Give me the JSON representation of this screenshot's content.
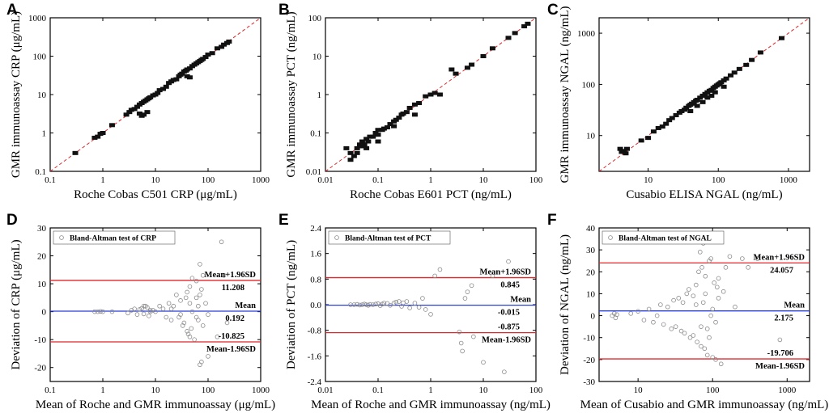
{
  "chart_data": [
    {
      "panel": "A",
      "type": "scatter",
      "scale": "log",
      "xlabel": "Roche Cobas C501 CRP (μg/mL)",
      "ylabel": "GMR immunoassay CRP (μg/mL)",
      "xlim": [
        0.1,
        1000
      ],
      "ylim": [
        0.1,
        1000
      ],
      "xticks": [
        "0.1",
        "1",
        "10",
        "100",
        "1000"
      ],
      "yticks": [
        "0.1",
        "1",
        "10",
        "100",
        "1000"
      ],
      "identity_line": true,
      "x": [
        0.3,
        0.7,
        0.8,
        0.9,
        1.0,
        1.5,
        2.8,
        3.2,
        3.5,
        4.0,
        4.5,
        5.0,
        5.5,
        6.0,
        6.5,
        7.0,
        7.5,
        8.0,
        9.0,
        10,
        11,
        12,
        14,
        16,
        18,
        20,
        22,
        25,
        28,
        30,
        32,
        35,
        38,
        40,
        45,
        50,
        55,
        60,
        65,
        70,
        75,
        80,
        90,
        100,
        120,
        150,
        180,
        200,
        230,
        250,
        5.0,
        6.0,
        7.0,
        5.5,
        40,
        45
      ],
      "y": [
        0.3,
        0.75,
        0.8,
        0.95,
        1.0,
        1.6,
        3.0,
        3.5,
        4.0,
        4.2,
        4.8,
        5.5,
        6.0,
        6.5,
        7.0,
        7.5,
        8.0,
        8.5,
        9.5,
        10,
        11,
        13,
        14,
        16,
        20,
        22,
        24,
        25,
        30,
        33,
        35,
        40,
        42,
        45,
        48,
        55,
        60,
        65,
        70,
        75,
        80,
        85,
        95,
        110,
        120,
        160,
        175,
        200,
        220,
        240,
        3.2,
        3.0,
        3.5,
        2.8,
        30,
        28
      ]
    },
    {
      "panel": "B",
      "type": "scatter",
      "scale": "log",
      "xlabel": "Roche Cobas E601 PCT (ng/mL)",
      "ylabel": "GMR immunoassay PCT (ng/mL)",
      "xlim": [
        0.01,
        100
      ],
      "ylim": [
        0.01,
        100
      ],
      "xticks": [
        "0.01",
        "0.1",
        "1",
        "10",
        "100"
      ],
      "yticks": [
        "0.01",
        "0.1",
        "1",
        "10",
        "100"
      ],
      "identity_line": true,
      "x": [
        0.025,
        0.03,
        0.03,
        0.035,
        0.04,
        0.04,
        0.045,
        0.05,
        0.05,
        0.055,
        0.06,
        0.065,
        0.07,
        0.08,
        0.09,
        0.1,
        0.1,
        0.12,
        0.13,
        0.15,
        0.17,
        0.2,
        0.22,
        0.25,
        0.28,
        0.3,
        0.35,
        0.4,
        0.5,
        0.6,
        0.8,
        1.0,
        1.2,
        1.5,
        2.5,
        3.0,
        5.0,
        6.0,
        10,
        15,
        30,
        40,
        60,
        70,
        0.1,
        0.2,
        0.5,
        0.06
      ],
      "y": [
        0.04,
        0.02,
        0.03,
        0.025,
        0.03,
        0.04,
        0.05,
        0.045,
        0.06,
        0.05,
        0.07,
        0.06,
        0.08,
        0.08,
        0.1,
        0.09,
        0.12,
        0.12,
        0.13,
        0.14,
        0.17,
        0.2,
        0.22,
        0.25,
        0.3,
        0.32,
        0.35,
        0.45,
        0.55,
        0.6,
        0.9,
        1.0,
        1.1,
        1.0,
        4.5,
        3.5,
        5.0,
        6.0,
        10,
        16,
        30,
        40,
        60,
        70,
        0.06,
        0.15,
        0.3,
        0.04
      ]
    },
    {
      "panel": "C",
      "type": "scatter",
      "scale": "log",
      "xlabel": "Cusabio ELISA  NGAL (ng/mL)",
      "ylabel": "GMR immunoassay  NGAL (ng/mL)",
      "xlim": [
        2,
        2000
      ],
      "ylim": [
        2,
        2000
      ],
      "xticks": [
        "10",
        "100",
        "1000"
      ],
      "yticks": [
        "10",
        "100",
        "1000"
      ],
      "identity_line": true,
      "x": [
        4,
        4.2,
        4.5,
        4.8,
        5,
        8,
        10,
        12,
        14,
        16,
        18,
        20,
        22,
        25,
        28,
        30,
        33,
        35,
        38,
        40,
        42,
        45,
        48,
        50,
        55,
        60,
        65,
        70,
        75,
        80,
        85,
        90,
        95,
        100,
        105,
        110,
        120,
        130,
        150,
        170,
        200,
        250,
        300,
        400,
        800,
        60,
        70,
        80,
        90,
        50,
        40,
        120
      ],
      "y": [
        5.5,
        4.8,
        5.0,
        4.5,
        5.5,
        8,
        9,
        12,
        14,
        15,
        17,
        20,
        22,
        25,
        28,
        30,
        32,
        35,
        38,
        40,
        42,
        45,
        48,
        50,
        55,
        60,
        65,
        70,
        75,
        78,
        85,
        90,
        95,
        100,
        105,
        110,
        120,
        130,
        150,
        170,
        200,
        240,
        300,
        420,
        800,
        45,
        55,
        60,
        70,
        38,
        30,
        90
      ]
    },
    {
      "panel": "D",
      "type": "scatter",
      "scale": "semilog-x",
      "xlabel": "Mean of Roche and GMR immunoassay (μg/mL)",
      "ylabel": "Deviation of CRP (μg/mL)",
      "xlim": [
        0.1,
        1000
      ],
      "ylim": [
        -25,
        30
      ],
      "xticks": [
        "0.1",
        "1",
        "10",
        "100",
        "1000"
      ],
      "yticks": [
        "-20",
        "-10",
        "0",
        "10",
        "20",
        "30"
      ],
      "legend": "Bland-Altman test of CRP",
      "mean": 0.192,
      "upper_loa": 11.208,
      "lower_loa": -10.825,
      "mean_label": "Mean",
      "upper_label": "Mean+1.96SD",
      "lower_label": "Mean-1.96SD",
      "mean_value_label": "0.192",
      "upper_value_label": "11.208",
      "lower_value_label": "-10.825",
      "x": [
        0.7,
        0.8,
        0.9,
        1.0,
        1.5,
        3.0,
        3.5,
        4,
        4.5,
        5,
        5.5,
        6,
        6.5,
        7,
        7.5,
        8,
        9,
        10,
        12,
        14,
        16,
        18,
        20,
        22,
        25,
        28,
        30,
        33,
        35,
        38,
        40,
        42,
        45,
        48,
        50,
        55,
        60,
        65,
        70,
        75,
        80,
        90,
        100,
        150,
        180,
        200,
        230,
        40,
        45,
        60,
        70,
        75,
        80,
        45,
        50,
        60,
        65,
        70,
        100,
        20,
        30,
        8,
        6
      ],
      "y": [
        0,
        0,
        0.1,
        0,
        0,
        -0.5,
        0.5,
        1,
        -1,
        0.8,
        1.2,
        -0.8,
        2,
        1.5,
        -1.5,
        0.5,
        0.5,
        0,
        2,
        1,
        -2,
        3,
        -3,
        2,
        6,
        -2,
        4,
        -5,
        -4,
        5,
        7,
        -8,
        9,
        -6,
        12,
        -10,
        11,
        -3,
        17,
        -18,
        13,
        3,
        -16,
        -9,
        25,
        13,
        -4,
        -7,
        -9,
        5,
        -19,
        8,
        -5,
        3,
        0,
        -2,
        2,
        6,
        -1,
        1,
        -1,
        0,
        2
      ]
    },
    {
      "panel": "E",
      "type": "scatter",
      "scale": "semilog-x",
      "xlabel": "Mean of Roche and GMR immunoassay (ng/mL)",
      "ylabel": "Deviation of PCT (ng/mL)",
      "xlim": [
        0.01,
        100
      ],
      "ylim": [
        -2.4,
        2.4
      ],
      "xticks": [
        "0.01",
        "0.1",
        "1",
        "10",
        "100"
      ],
      "yticks": [
        "-2.4",
        "-1.6",
        "-0.8",
        "0.0",
        "0.8",
        "1.6",
        "2.4"
      ],
      "legend": "Bland-Altman test of PCT",
      "mean": -0.015,
      "upper_loa": 0.845,
      "lower_loa": -0.875,
      "mean_label": "Mean",
      "upper_label": "Mean+1.96SD",
      "lower_label": "Mean-1.96SD",
      "mean_value_label": "-0.015",
      "upper_value_label": "0.845",
      "lower_value_label": "-0.875",
      "x": [
        0.03,
        0.035,
        0.04,
        0.045,
        0.05,
        0.055,
        0.06,
        0.065,
        0.07,
        0.08,
        0.09,
        0.1,
        0.11,
        0.12,
        0.13,
        0.15,
        0.17,
        0.2,
        0.22,
        0.25,
        0.28,
        0.3,
        0.35,
        0.4,
        0.5,
        0.6,
        0.7,
        0.8,
        1.0,
        1.2,
        1.5,
        3.5,
        4,
        5,
        6,
        6.5,
        10,
        15,
        25,
        30,
        3.8,
        4.5
      ],
      "y": [
        0,
        0,
        0.01,
        -0.01,
        0,
        0.02,
        0,
        -0.02,
        0.01,
        0,
        0.02,
        0.03,
        -0.03,
        0.02,
        0.05,
        0.04,
        -0.02,
        0.05,
        0.08,
        0.1,
        -0.05,
        0.06,
        0.1,
        -0.1,
        0.05,
        -0.08,
        0.2,
        -0.15,
        -0.3,
        0.9,
        1.1,
        -0.85,
        -1.45,
        0.4,
        0.6,
        -1.0,
        -1.8,
        0.9,
        -2.1,
        1.35,
        -1.2,
        0.2
      ]
    },
    {
      "panel": "F",
      "type": "scatter",
      "scale": "semilog-x",
      "xlabel": "Mean of Cusabio and GMR immunoassay (ng/mL)",
      "ylabel": "Deviation of NGAL (ng/mL)",
      "xlim": [
        3,
        2000
      ],
      "ylim": [
        -30,
        40
      ],
      "xticks": [
        "10",
        "100",
        "1000"
      ],
      "yticks": [
        "-30",
        "-20",
        "-10",
        "0",
        "10",
        "20",
        "30",
        "40"
      ],
      "legend": "Bland-Altman test of NGAL",
      "mean": 2.175,
      "upper_loa": 24.057,
      "lower_loa": -19.706,
      "mean_label": "Mean",
      "upper_label": "Mean+1.96SD",
      "lower_label": "Mean-1.96SD",
      "mean_value_label": "2.175",
      "upper_value_label": "24.057",
      "lower_value_label": "-19.706",
      "x": [
        4.5,
        4.8,
        5,
        5.2,
        8,
        10,
        12,
        14,
        16,
        18,
        20,
        22,
        25,
        28,
        30,
        32,
        35,
        38,
        40,
        42,
        45,
        48,
        50,
        55,
        60,
        62,
        65,
        68,
        70,
        72,
        75,
        78,
        80,
        85,
        90,
        95,
        100,
        105,
        110,
        115,
        120,
        130,
        140,
        150,
        170,
        200,
        250,
        300,
        400,
        800,
        60,
        70,
        80,
        90,
        100,
        110,
        120,
        55,
        75,
        85,
        95
      ],
      "y": [
        0,
        1,
        -1,
        0.5,
        1,
        2,
        -2,
        3,
        -3,
        0,
        5,
        -4,
        4,
        -6,
        7,
        -5,
        8,
        -7,
        6,
        -8,
        10,
        12,
        -10,
        9,
        14,
        -12,
        20,
        29,
        -14,
        22,
        33,
        -15,
        18,
        -18,
        25,
        26,
        -19,
        15,
        -20,
        13,
        17,
        -22,
        11,
        22,
        27,
        4,
        26,
        22,
        26,
        -11,
        5,
        -5,
        10,
        -10,
        3,
        -3,
        8,
        -9,
        6,
        -6,
        0
      ]
    }
  ]
}
